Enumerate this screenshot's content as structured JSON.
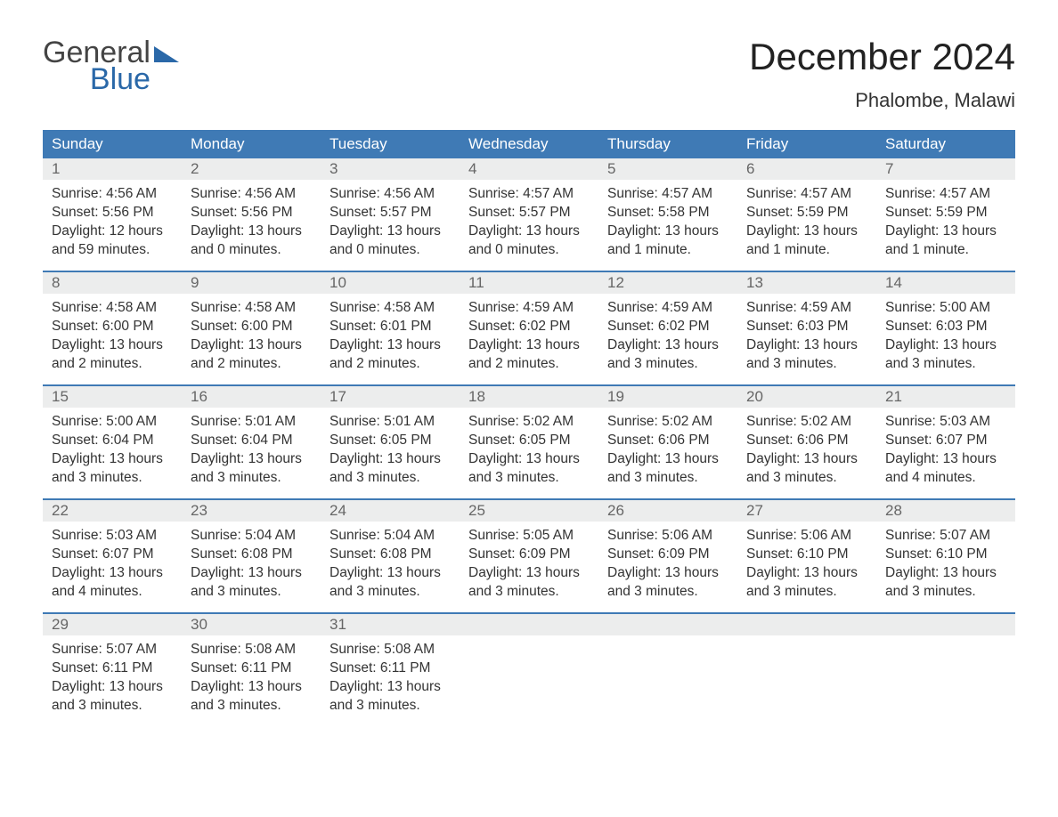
{
  "brand": {
    "line1": "General",
    "line2": "Blue",
    "text_color": "#2a68a8",
    "top_color": "#444444"
  },
  "title": "December 2024",
  "location": "Phalombe, Malawi",
  "colors": {
    "header_bg": "#3f7ab5",
    "header_text": "#ffffff",
    "daynum_bg": "#eceded",
    "daynum_text": "#666666",
    "rule": "#3f7ab5",
    "body_text": "#333333",
    "page_bg": "#ffffff"
  },
  "day_labels": [
    "Sunday",
    "Monday",
    "Tuesday",
    "Wednesday",
    "Thursday",
    "Friday",
    "Saturday"
  ],
  "weeks": [
    [
      {
        "n": "1",
        "sunrise": "4:56 AM",
        "sunset": "5:56 PM",
        "daylight": "12 hours and 59 minutes."
      },
      {
        "n": "2",
        "sunrise": "4:56 AM",
        "sunset": "5:56 PM",
        "daylight": "13 hours and 0 minutes."
      },
      {
        "n": "3",
        "sunrise": "4:56 AM",
        "sunset": "5:57 PM",
        "daylight": "13 hours and 0 minutes."
      },
      {
        "n": "4",
        "sunrise": "4:57 AM",
        "sunset": "5:57 PM",
        "daylight": "13 hours and 0 minutes."
      },
      {
        "n": "5",
        "sunrise": "4:57 AM",
        "sunset": "5:58 PM",
        "daylight": "13 hours and 1 minute."
      },
      {
        "n": "6",
        "sunrise": "4:57 AM",
        "sunset": "5:59 PM",
        "daylight": "13 hours and 1 minute."
      },
      {
        "n": "7",
        "sunrise": "4:57 AM",
        "sunset": "5:59 PM",
        "daylight": "13 hours and 1 minute."
      }
    ],
    [
      {
        "n": "8",
        "sunrise": "4:58 AM",
        "sunset": "6:00 PM",
        "daylight": "13 hours and 2 minutes."
      },
      {
        "n": "9",
        "sunrise": "4:58 AM",
        "sunset": "6:00 PM",
        "daylight": "13 hours and 2 minutes."
      },
      {
        "n": "10",
        "sunrise": "4:58 AM",
        "sunset": "6:01 PM",
        "daylight": "13 hours and 2 minutes."
      },
      {
        "n": "11",
        "sunrise": "4:59 AM",
        "sunset": "6:02 PM",
        "daylight": "13 hours and 2 minutes."
      },
      {
        "n": "12",
        "sunrise": "4:59 AM",
        "sunset": "6:02 PM",
        "daylight": "13 hours and 3 minutes."
      },
      {
        "n": "13",
        "sunrise": "4:59 AM",
        "sunset": "6:03 PM",
        "daylight": "13 hours and 3 minutes."
      },
      {
        "n": "14",
        "sunrise": "5:00 AM",
        "sunset": "6:03 PM",
        "daylight": "13 hours and 3 minutes."
      }
    ],
    [
      {
        "n": "15",
        "sunrise": "5:00 AM",
        "sunset": "6:04 PM",
        "daylight": "13 hours and 3 minutes."
      },
      {
        "n": "16",
        "sunrise": "5:01 AM",
        "sunset": "6:04 PM",
        "daylight": "13 hours and 3 minutes."
      },
      {
        "n": "17",
        "sunrise": "5:01 AM",
        "sunset": "6:05 PM",
        "daylight": "13 hours and 3 minutes."
      },
      {
        "n": "18",
        "sunrise": "5:02 AM",
        "sunset": "6:05 PM",
        "daylight": "13 hours and 3 minutes."
      },
      {
        "n": "19",
        "sunrise": "5:02 AM",
        "sunset": "6:06 PM",
        "daylight": "13 hours and 3 minutes."
      },
      {
        "n": "20",
        "sunrise": "5:02 AM",
        "sunset": "6:06 PM",
        "daylight": "13 hours and 3 minutes."
      },
      {
        "n": "21",
        "sunrise": "5:03 AM",
        "sunset": "6:07 PM",
        "daylight": "13 hours and 4 minutes."
      }
    ],
    [
      {
        "n": "22",
        "sunrise": "5:03 AM",
        "sunset": "6:07 PM",
        "daylight": "13 hours and 4 minutes."
      },
      {
        "n": "23",
        "sunrise": "5:04 AM",
        "sunset": "6:08 PM",
        "daylight": "13 hours and 3 minutes."
      },
      {
        "n": "24",
        "sunrise": "5:04 AM",
        "sunset": "6:08 PM",
        "daylight": "13 hours and 3 minutes."
      },
      {
        "n": "25",
        "sunrise": "5:05 AM",
        "sunset": "6:09 PM",
        "daylight": "13 hours and 3 minutes."
      },
      {
        "n": "26",
        "sunrise": "5:06 AM",
        "sunset": "6:09 PM",
        "daylight": "13 hours and 3 minutes."
      },
      {
        "n": "27",
        "sunrise": "5:06 AM",
        "sunset": "6:10 PM",
        "daylight": "13 hours and 3 minutes."
      },
      {
        "n": "28",
        "sunrise": "5:07 AM",
        "sunset": "6:10 PM",
        "daylight": "13 hours and 3 minutes."
      }
    ],
    [
      {
        "n": "29",
        "sunrise": "5:07 AM",
        "sunset": "6:11 PM",
        "daylight": "13 hours and 3 minutes."
      },
      {
        "n": "30",
        "sunrise": "5:08 AM",
        "sunset": "6:11 PM",
        "daylight": "13 hours and 3 minutes."
      },
      {
        "n": "31",
        "sunrise": "5:08 AM",
        "sunset": "6:11 PM",
        "daylight": "13 hours and 3 minutes."
      },
      null,
      null,
      null,
      null
    ]
  ],
  "labels": {
    "sunrise": "Sunrise:",
    "sunset": "Sunset:",
    "daylight": "Daylight:"
  }
}
